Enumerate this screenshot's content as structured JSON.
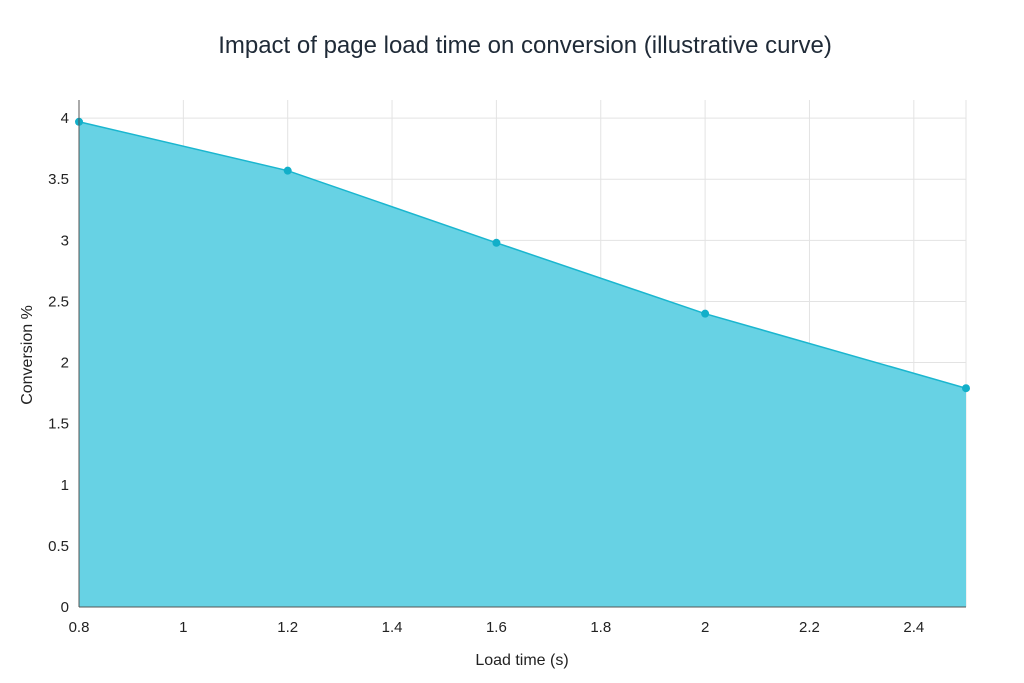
{
  "chart_data": {
    "type": "area",
    "title": "Impact of page load time on conversion (illustrative curve)",
    "xlabel": "Load time (s)",
    "ylabel": "Conversion %",
    "x": [
      0.8,
      1.2,
      1.6,
      2.0,
      2.5
    ],
    "series": [
      {
        "values": [
          3.97,
          3.57,
          2.98,
          2.4,
          1.79
        ]
      }
    ],
    "xlim": [
      0.8,
      2.5
    ],
    "ylim": [
      0,
      4.05
    ],
    "x_ticks": [
      "0.8",
      "1",
      "1.2",
      "1.4",
      "1.6",
      "1.8",
      "2",
      "2.2",
      "2.4"
    ],
    "y_ticks": [
      "0",
      "0.5",
      "1",
      "1.5",
      "2",
      "2.5",
      "3",
      "3.5",
      "4"
    ],
    "grid": true,
    "colors": {
      "fill": "#67d2e4",
      "line": "#1ab6cf",
      "marker": "#12afc9"
    }
  }
}
